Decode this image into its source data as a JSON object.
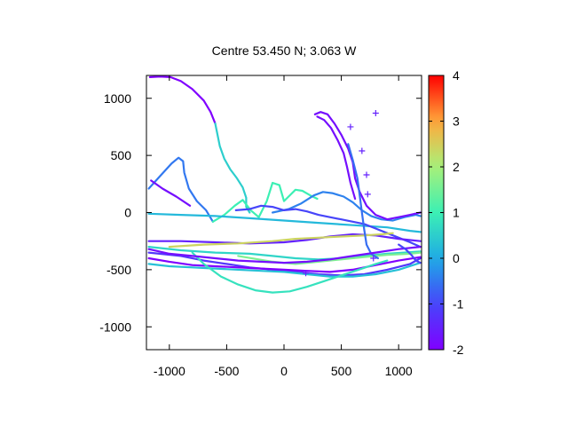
{
  "chart_data": {
    "type": "scatter",
    "title": "Centre 53.450 N; 3.063  W",
    "xlabel": "",
    "ylabel": "",
    "xlim": [
      -1200,
      1200
    ],
    "ylim": [
      -1200,
      1200
    ],
    "x_ticks": [
      -1000,
      -500,
      0,
      500,
      1000
    ],
    "y_ticks": [
      -1000,
      -500,
      0,
      500,
      1000
    ],
    "grid": false,
    "colorbar": {
      "range": [
        -2,
        4
      ],
      "ticks": [
        -2,
        -1,
        0,
        1,
        2,
        3,
        4
      ],
      "palette": "rainbow"
    },
    "series": [
      {
        "color_value": -2.0,
        "points": [
          [
            -1170,
            1185
          ],
          [
            -1080,
            1190
          ],
          [
            -990,
            1185
          ],
          [
            -900,
            1150
          ],
          [
            -800,
            1080
          ],
          [
            -700,
            980
          ],
          [
            -640,
            880
          ],
          [
            -600,
            780
          ]
        ]
      },
      {
        "color_value": 0.5,
        "points": [
          [
            -600,
            780
          ],
          [
            -580,
            680
          ],
          [
            -560,
            580
          ],
          [
            -520,
            470
          ],
          [
            -470,
            380
          ],
          [
            -410,
            300
          ],
          [
            -360,
            220
          ],
          [
            -330,
            130
          ],
          [
            -330,
            50
          ],
          [
            -300,
            0
          ]
        ]
      },
      {
        "color_value": -0.5,
        "points": [
          [
            -1180,
            210
          ],
          [
            -1080,
            320
          ],
          [
            -980,
            430
          ],
          [
            -920,
            480
          ],
          [
            -880,
            450
          ],
          [
            -870,
            350
          ],
          [
            -830,
            210
          ],
          [
            -760,
            100
          ],
          [
            -680,
            20
          ],
          [
            -620,
            -80
          ]
        ]
      },
      {
        "color_value": -1.8,
        "points": [
          [
            -1160,
            280
          ],
          [
            -1060,
            210
          ],
          [
            -940,
            140
          ],
          [
            -820,
            60
          ]
        ]
      },
      {
        "color_value": 1.0,
        "points": [
          [
            -620,
            -80
          ],
          [
            -520,
            -20
          ],
          [
            -430,
            60
          ],
          [
            -360,
            110
          ],
          [
            -290,
            20
          ],
          [
            -220,
            -40
          ],
          [
            -150,
            100
          ],
          [
            -100,
            260
          ],
          [
            -40,
            240
          ],
          [
            0,
            100
          ],
          [
            60,
            160
          ],
          [
            100,
            200
          ],
          [
            160,
            190
          ],
          [
            230,
            150
          ],
          [
            290,
            120
          ]
        ]
      },
      {
        "color_value": 0.2,
        "points": [
          [
            -1180,
            -10
          ],
          [
            -900,
            -20
          ],
          [
            -600,
            -30
          ],
          [
            -300,
            -50
          ],
          [
            0,
            -70
          ],
          [
            300,
            -90
          ],
          [
            600,
            -110
          ],
          [
            900,
            -130
          ],
          [
            1100,
            -160
          ],
          [
            1190,
            -170
          ]
        ]
      },
      {
        "color_value": -0.4,
        "points": [
          [
            -100,
            0
          ],
          [
            40,
            30
          ],
          [
            150,
            80
          ],
          [
            260,
            150
          ],
          [
            340,
            180
          ],
          [
            420,
            170
          ],
          [
            520,
            140
          ],
          [
            600,
            90
          ],
          [
            680,
            20
          ],
          [
            760,
            -30
          ],
          [
            850,
            -60
          ],
          [
            950,
            -70
          ],
          [
            1050,
            -40
          ],
          [
            1150,
            -20
          ],
          [
            1190,
            -30
          ]
        ]
      },
      {
        "color_value": -1.8,
        "points": [
          [
            270,
            860
          ],
          [
            320,
            880
          ],
          [
            380,
            860
          ],
          [
            440,
            780
          ],
          [
            500,
            680
          ],
          [
            560,
            560
          ],
          [
            600,
            440
          ],
          [
            620,
            300
          ],
          [
            660,
            180
          ],
          [
            720,
            60
          ],
          [
            800,
            -20
          ],
          [
            900,
            -60
          ],
          [
            1000,
            -40
          ],
          [
            1100,
            -20
          ],
          [
            1190,
            0
          ]
        ]
      },
      {
        "color_value": -1.8,
        "points": [
          [
            290,
            840
          ],
          [
            350,
            810
          ],
          [
            410,
            740
          ],
          [
            470,
            630
          ],
          [
            520,
            520
          ],
          [
            550,
            400
          ],
          [
            580,
            260
          ],
          [
            620,
            120
          ]
        ]
      },
      {
        "color_value": -1.0,
        "points": [
          [
            -420,
            20
          ],
          [
            -300,
            30
          ],
          [
            -200,
            60
          ],
          [
            -100,
            50
          ],
          [
            0,
            20
          ],
          [
            100,
            30
          ],
          [
            200,
            10
          ],
          [
            300,
            -20
          ],
          [
            400,
            -40
          ],
          [
            500,
            -60
          ],
          [
            600,
            -80
          ],
          [
            700,
            -100
          ],
          [
            800,
            -140
          ],
          [
            900,
            -180
          ],
          [
            1000,
            -220
          ],
          [
            1100,
            -260
          ],
          [
            1190,
            -300
          ]
        ]
      },
      {
        "color_value": -1.5,
        "points": [
          [
            -1180,
            -250
          ],
          [
            -900,
            -250
          ],
          [
            -600,
            -260
          ],
          [
            -300,
            -270
          ],
          [
            0,
            -260
          ],
          [
            200,
            -240
          ],
          [
            400,
            -210
          ],
          [
            600,
            -190
          ],
          [
            800,
            -200
          ],
          [
            1000,
            -230
          ],
          [
            1190,
            -250
          ]
        ]
      },
      {
        "color_value": 2.4,
        "points": [
          [
            -1000,
            -300
          ],
          [
            -700,
            -280
          ],
          [
            -400,
            -270
          ],
          [
            -100,
            -250
          ],
          [
            100,
            -230
          ],
          [
            300,
            -220
          ],
          [
            500,
            -210
          ],
          [
            700,
            -200
          ],
          [
            850,
            -190
          ],
          [
            950,
            -180
          ]
        ]
      },
      {
        "color_value": 0.6,
        "points": [
          [
            -1180,
            -300
          ],
          [
            -900,
            -330
          ],
          [
            -600,
            -350
          ],
          [
            -300,
            -360
          ],
          [
            -100,
            -380
          ],
          [
            100,
            -400
          ],
          [
            300,
            -410
          ],
          [
            500,
            -400
          ],
          [
            700,
            -380
          ],
          [
            900,
            -360
          ],
          [
            1050,
            -350
          ],
          [
            1190,
            -340
          ]
        ]
      },
      {
        "color_value": 1.6,
        "points": [
          [
            -400,
            -380
          ],
          [
            -100,
            -430
          ],
          [
            100,
            -450
          ],
          [
            300,
            -430
          ],
          [
            500,
            -410
          ],
          [
            700,
            -390
          ],
          [
            900,
            -370
          ],
          [
            1100,
            -360
          ],
          [
            1190,
            -350
          ]
        ]
      },
      {
        "color_value": -1.2,
        "points": [
          [
            -1180,
            -350
          ],
          [
            -900,
            -380
          ],
          [
            -700,
            -420
          ],
          [
            -500,
            -450
          ],
          [
            -300,
            -480
          ],
          [
            -100,
            -500
          ],
          [
            100,
            -520
          ],
          [
            300,
            -540
          ],
          [
            500,
            -550
          ],
          [
            700,
            -540
          ],
          [
            900,
            -500
          ],
          [
            1100,
            -450
          ],
          [
            1190,
            -400
          ]
        ]
      },
      {
        "color_value": -2.0,
        "points": [
          [
            -1180,
            -400
          ],
          [
            -1000,
            -430
          ],
          [
            -800,
            -460
          ],
          [
            -600,
            -470
          ],
          [
            -400,
            -480
          ],
          [
            -200,
            -490
          ],
          [
            0,
            -500
          ],
          [
            200,
            -510
          ],
          [
            400,
            -520
          ],
          [
            600,
            -500
          ],
          [
            800,
            -460
          ],
          [
            1000,
            -420
          ],
          [
            1190,
            -390
          ]
        ]
      },
      {
        "color_value": 0.3,
        "points": [
          [
            -1180,
            -450
          ],
          [
            -1000,
            -470
          ],
          [
            -800,
            -480
          ],
          [
            -600,
            -490
          ],
          [
            -400,
            -500
          ],
          [
            -200,
            -510
          ],
          [
            0,
            -520
          ],
          [
            200,
            -540
          ],
          [
            400,
            -560
          ],
          [
            600,
            -560
          ],
          [
            800,
            -540
          ],
          [
            1000,
            -500
          ],
          [
            1190,
            -440
          ]
        ]
      },
      {
        "color_value": 0.8,
        "points": [
          [
            -800,
            -350
          ],
          [
            -700,
            -450
          ],
          [
            -550,
            -560
          ],
          [
            -400,
            -630
          ],
          [
            -250,
            -680
          ],
          [
            -100,
            -700
          ],
          [
            50,
            -690
          ],
          [
            200,
            -650
          ],
          [
            350,
            -600
          ],
          [
            500,
            -550
          ],
          [
            650,
            -500
          ],
          [
            800,
            -450
          ],
          [
            900,
            -420
          ]
        ]
      },
      {
        "color_value": -0.6,
        "points": [
          [
            560,
            600
          ],
          [
            600,
            460
          ],
          [
            640,
            300
          ],
          [
            660,
            150
          ],
          [
            680,
            0
          ],
          [
            700,
            -150
          ],
          [
            720,
            -280
          ],
          [
            760,
            -360
          ],
          [
            820,
            -400
          ]
        ]
      },
      {
        "color_value": -1.8,
        "points": [
          [
            -1180,
            -320
          ],
          [
            -1000,
            -360
          ],
          [
            -800,
            -380
          ],
          [
            -600,
            -400
          ],
          [
            -400,
            -420
          ],
          [
            -200,
            -430
          ],
          [
            0,
            -440
          ],
          [
            200,
            -430
          ],
          [
            400,
            -410
          ],
          [
            600,
            -380
          ],
          [
            800,
            -350
          ],
          [
            1000,
            -320
          ],
          [
            1190,
            -300
          ]
        ]
      },
      {
        "color_value": -1.0,
        "points": [
          [
            1000,
            -280
          ],
          [
            1060,
            -320
          ],
          [
            1110,
            -370
          ],
          [
            1150,
            -420
          ],
          [
            1190,
            -440
          ]
        ]
      }
    ],
    "markers": {
      "color_value": -1.5,
      "points": [
        [
          800,
          870
        ],
        [
          580,
          750
        ],
        [
          680,
          540
        ],
        [
          720,
          330
        ],
        [
          730,
          160
        ],
        [
          190,
          -530
        ],
        [
          780,
          -400
        ]
      ]
    }
  }
}
